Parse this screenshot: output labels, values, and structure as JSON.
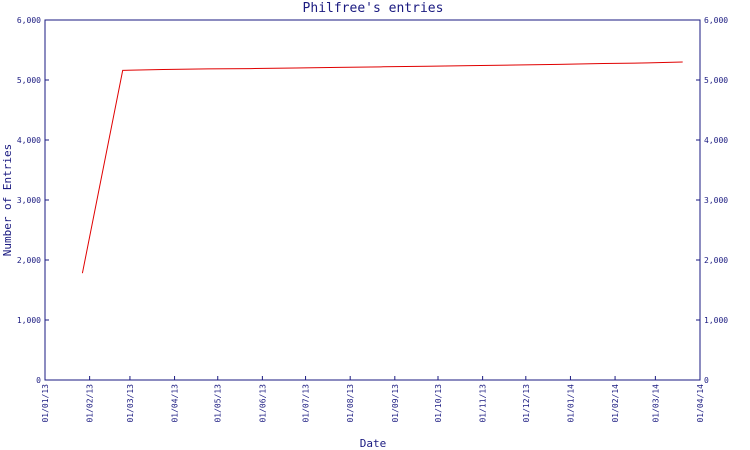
{
  "chart_data": {
    "type": "line",
    "title": "Philfree's entries",
    "xlabel": "Date",
    "ylabel": "Number of Entries",
    "x": [
      "27/01/13",
      "24/02/13",
      "24/03/13",
      "24/04/13",
      "24/05/13",
      "24/06/13",
      "24/07/13",
      "24/08/13",
      "24/09/13",
      "24/10/13",
      "24/11/13",
      "24/12/13",
      "24/01/14",
      "24/02/14",
      "20/03/14"
    ],
    "series": [
      {
        "name": "Entries",
        "color": "#e00000",
        "values": [
          1780,
          5160,
          5175,
          5185,
          5190,
          5200,
          5210,
          5220,
          5230,
          5240,
          5250,
          5260,
          5275,
          5285,
          5300
        ]
      }
    ],
    "xlim": [
      "01/01/13",
      "01/04/14"
    ],
    "xticks": [
      "01/01/13",
      "01/02/13",
      "01/03/13",
      "01/04/13",
      "01/05/13",
      "01/06/13",
      "01/07/13",
      "01/08/13",
      "01/09/13",
      "01/10/13",
      "01/11/13",
      "01/12/13",
      "01/01/14",
      "01/02/14",
      "01/03/14",
      "01/04/14"
    ],
    "ylim": [
      0,
      6000
    ],
    "yticks": [
      0,
      {
        "value": 1000,
        "label": "1,000"
      },
      {
        "value": 2000,
        "label": "2,000"
      },
      {
        "value": 3000,
        "label": "3,000"
      },
      {
        "value": 4000,
        "label": "4,000"
      },
      {
        "value": 5000,
        "label": "5,000"
      },
      {
        "value": 6000,
        "label": "6,000"
      }
    ],
    "y2lim": [
      0,
      6000
    ],
    "y2ticks": [
      0,
      {
        "value": 1000,
        "label": "1,000"
      },
      {
        "value": 2000,
        "label": "2,000"
      },
      {
        "value": 3000,
        "label": "3,000"
      },
      {
        "value": 4000,
        "label": "4,000"
      },
      {
        "value": 5000,
        "label": "5,000"
      },
      {
        "value": 6000,
        "label": "6,000"
      }
    ]
  }
}
